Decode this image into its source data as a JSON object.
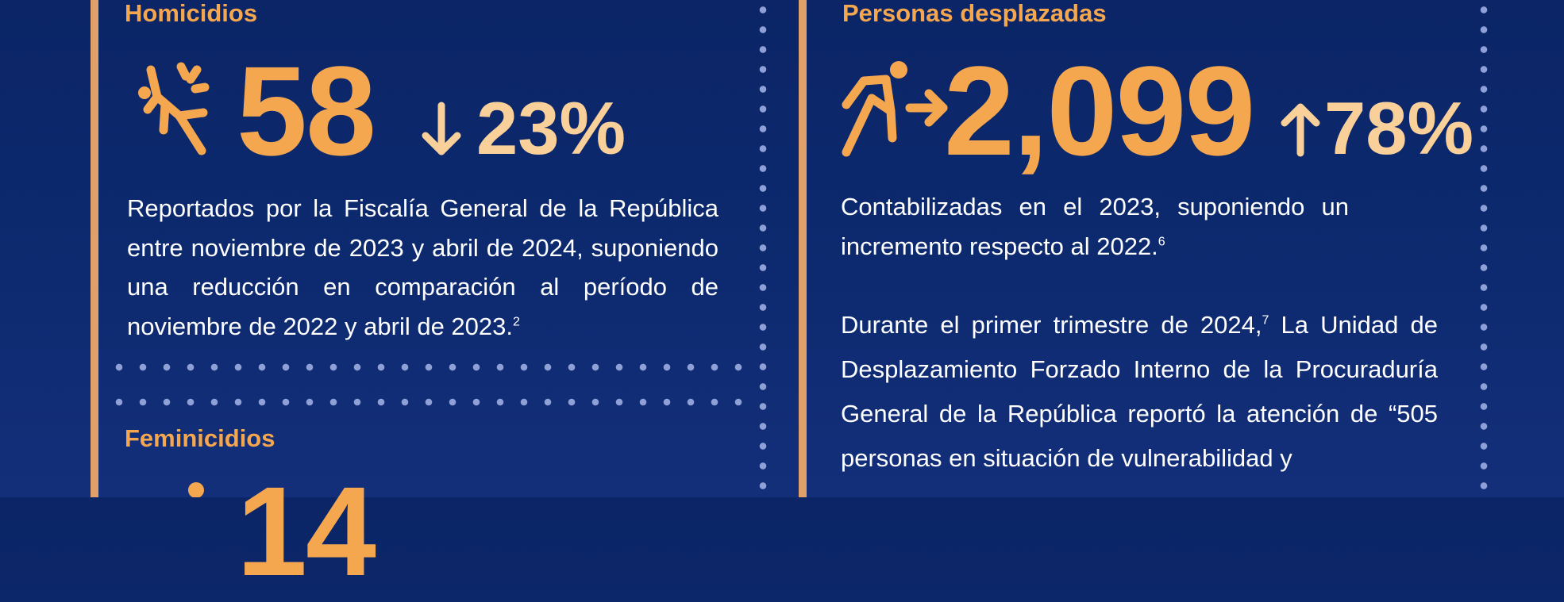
{
  "homicidios": {
    "title": "Homicidios",
    "value": "58",
    "change": "23%",
    "change_direction": "down",
    "icon": "person-falling-icon",
    "description": "Reportados por la Fiscalía General de la República entre noviembre de 2023 y abril de 2024, suponiendo una reducción en comparación al período de noviembre de 2022 y abril de 2023.",
    "footnote": "2"
  },
  "feminicidios": {
    "title": "Feminicidios",
    "value": "14"
  },
  "desplazadas": {
    "title": "Personas desplazadas",
    "value": "2,099",
    "change": "78%",
    "change_direction": "up",
    "icon": "person-running-icon",
    "description": "Contabilizadas en el 2023, suponiendo un incremento respecto al 2022.",
    "footnote": "6",
    "detail_start": "Durante el primer trimestre de 2024,",
    "detail_footnote": "7",
    "detail_rest": " La Unidad de Desplazamiento Forzado Interno de la Procuraduría General de la República reportó la atención de “505 personas en situación de vulnerabilidad y"
  },
  "colors": {
    "accent": "#f5a74f",
    "accent_light": "#f9cf9a",
    "background": "#0d2a70",
    "divider": "#e0a06a",
    "dots": "#8ea0d6"
  }
}
